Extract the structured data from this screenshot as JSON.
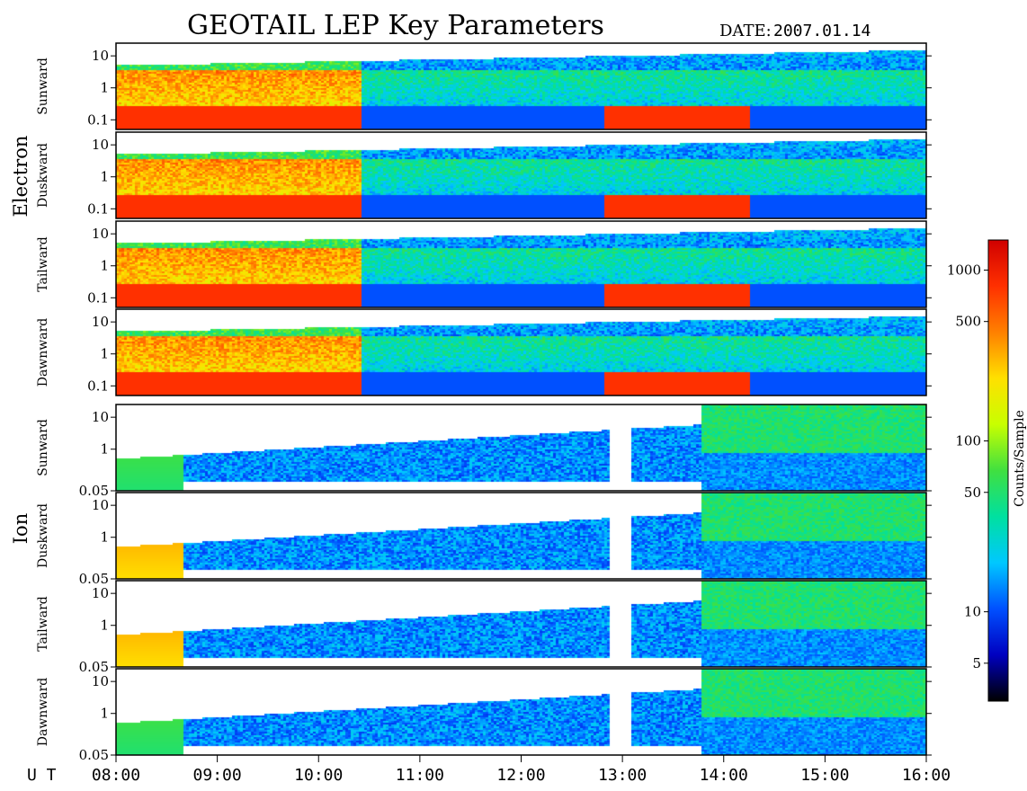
{
  "title": "GEOTAIL LEP Key Parameters",
  "date_label": "DATE:",
  "date_value": "2007.01.14",
  "colorbar": {
    "label": "Counts/Sample",
    "ticks": [
      "5",
      "10",
      "50",
      "100",
      "500",
      "1000"
    ],
    "tick_values": [
      5,
      10,
      50,
      100,
      500,
      1000
    ],
    "range": [
      3,
      1500
    ],
    "scale": "log",
    "colormap": [
      "#000000",
      "#0000c0",
      "#0050ff",
      "#00c8ff",
      "#00e0a0",
      "#40e040",
      "#c8ff00",
      "#ffe000",
      "#ff8000",
      "#ff3000",
      "#d00000"
    ]
  },
  "chart_data": {
    "type": "heatmap",
    "title": "GEOTAIL LEP Key Parameters",
    "x_axis": {
      "label": "U T",
      "ticks": [
        "08:00",
        "09:00",
        "10:00",
        "11:00",
        "12:00",
        "13:00",
        "14:00",
        "15:00",
        "16:00"
      ],
      "range": [
        "08:00",
        "16:00"
      ]
    },
    "groups": [
      {
        "name": "Electron",
        "y_ticks": [
          "10",
          "1",
          "0.1"
        ],
        "y_scale": "log",
        "y_range": [
          0.05,
          25
        ],
        "panels": [
          "Sunward",
          "Duskward",
          "Tailward",
          "Dawnward"
        ]
      },
      {
        "name": "Ion",
        "y_ticks": [
          "10",
          "1",
          "0.05"
        ],
        "y_scale": "log",
        "y_range": [
          0.05,
          25
        ],
        "panels": [
          "Sunward",
          "Duskward",
          "Tailward",
          "Dawnward"
        ]
      }
    ]
  }
}
